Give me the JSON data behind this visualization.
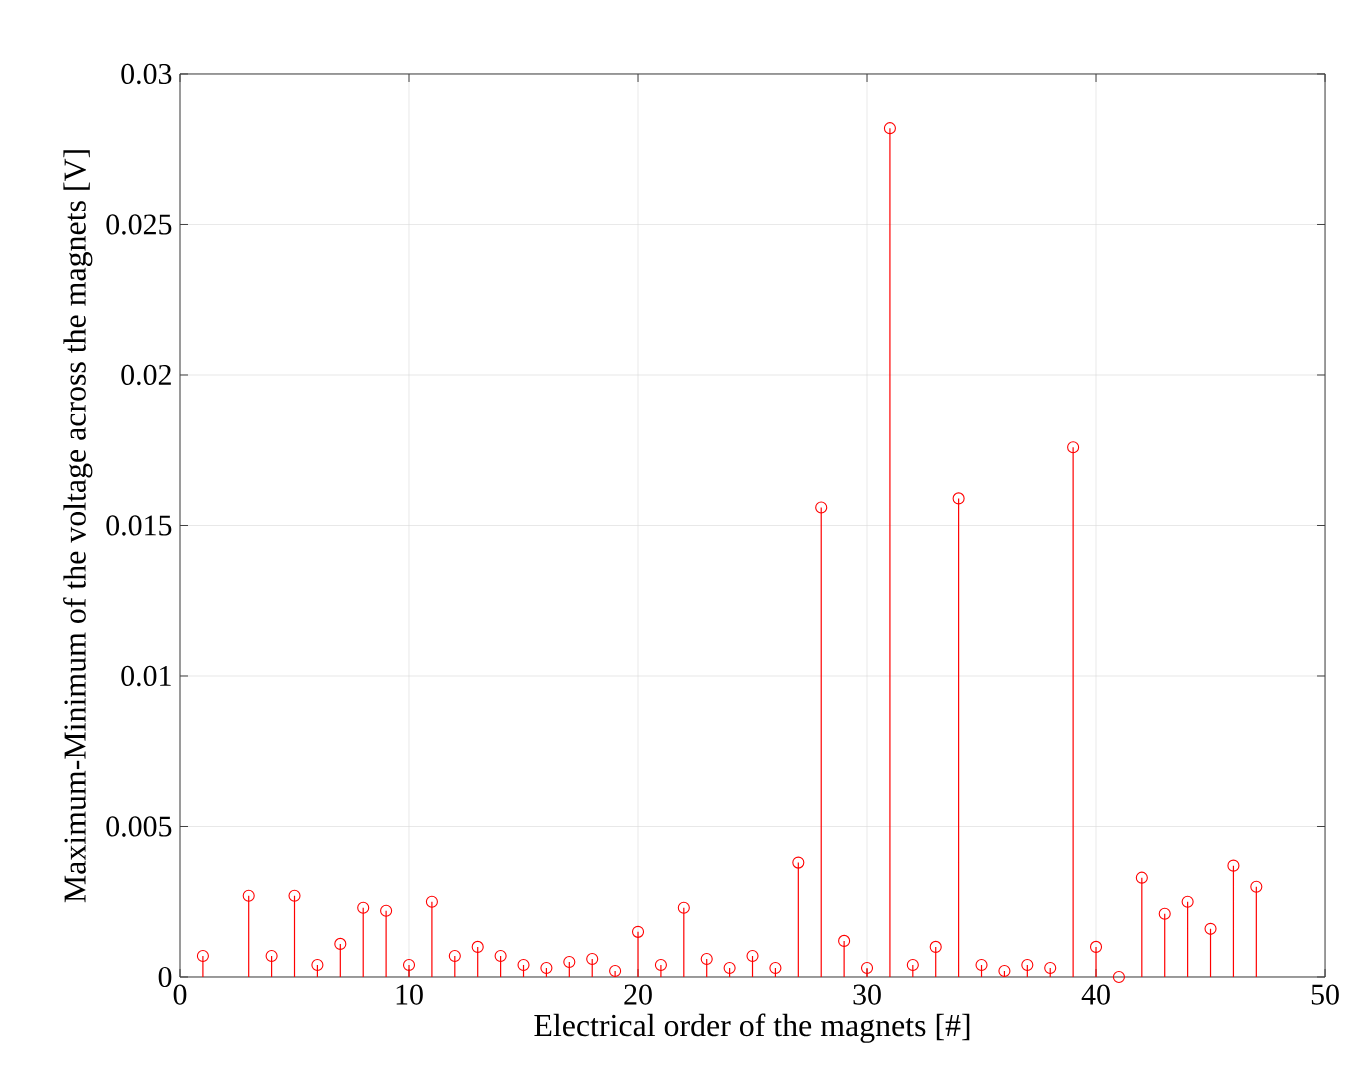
{
  "chart_data": {
    "type": "lollipop",
    "xlabel": "Electrical order of the magnets [#]",
    "ylabel": "Maximum-Minimum of the voltage across the magnets [V]",
    "x": [
      1,
      3,
      4,
      5,
      6,
      7,
      8,
      9,
      10,
      11,
      12,
      13,
      14,
      15,
      16,
      17,
      18,
      19,
      20,
      21,
      22,
      23,
      24,
      25,
      26,
      27,
      28,
      29,
      30,
      31,
      32,
      33,
      34,
      35,
      36,
      37,
      38,
      39,
      40,
      41,
      42,
      43,
      44,
      45,
      46,
      47
    ],
    "values": [
      0.0007,
      0.0027,
      0.0007,
      0.0027,
      0.0004,
      0.0011,
      0.0023,
      0.0022,
      0.0004,
      0.0025,
      0.0007,
      0.001,
      0.0007,
      0.0004,
      0.0003,
      0.0005,
      0.0006,
      0.0002,
      0.0015,
      0.0004,
      0.0023,
      0.0006,
      0.0003,
      0.0007,
      0.0003,
      0.0038,
      0.0156,
      0.0012,
      0.0003,
      0.0282,
      0.0004,
      0.001,
      0.0159,
      0.0004,
      0.0002,
      0.0004,
      0.0003,
      0.0176,
      0.001,
      0.0,
      0.0033,
      0.0021,
      0.0025,
      0.0016,
      0.0037,
      0.003
    ],
    "color": "#ff0000",
    "marker": "circle",
    "grid": true,
    "xlim": [
      0,
      50
    ],
    "xticks": [
      0,
      10,
      20,
      30,
      40,
      50
    ],
    "ylim": [
      0,
      0.03
    ],
    "yticks": [
      0,
      0.005,
      0.01,
      0.015,
      0.02,
      0.025,
      0.03
    ]
  }
}
